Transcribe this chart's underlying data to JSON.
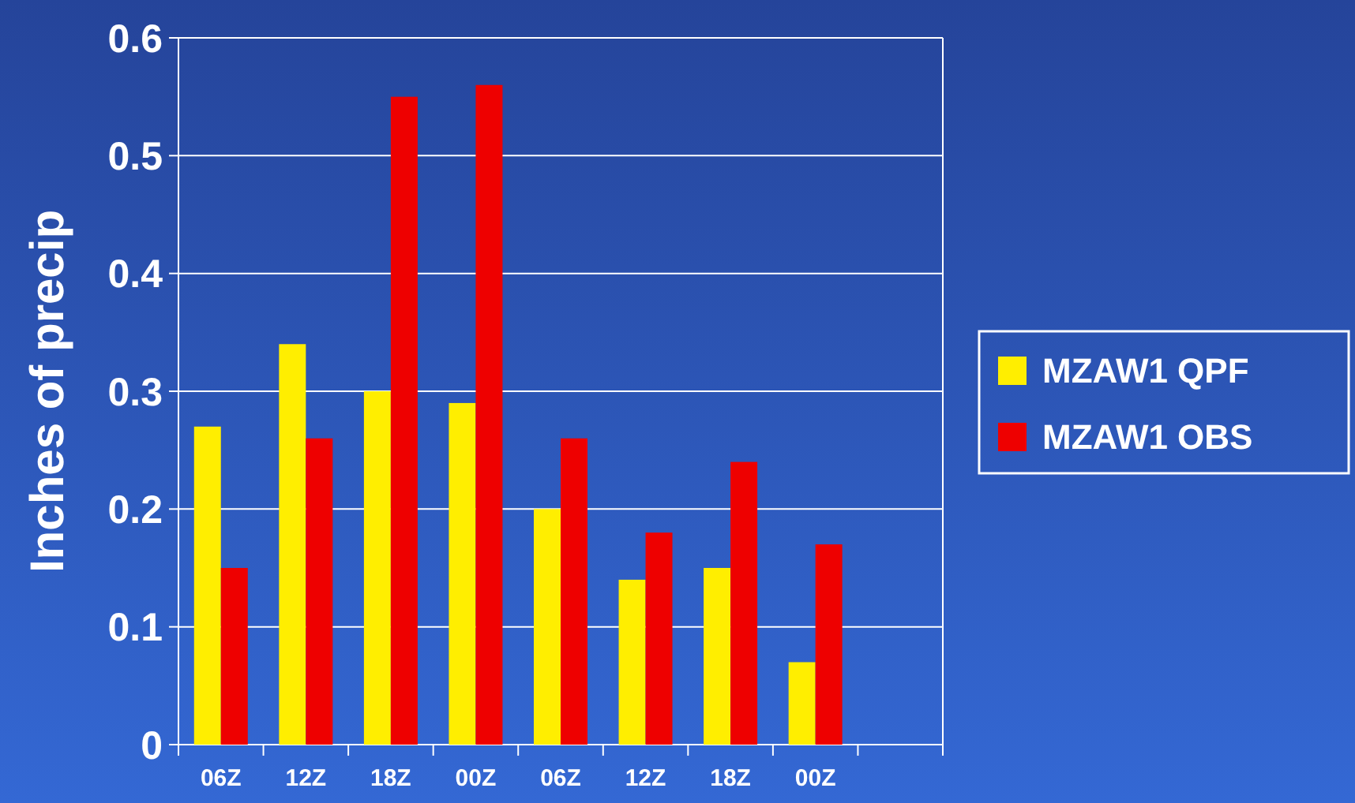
{
  "chart_data": {
    "type": "bar",
    "ylabel": "Inches of precip",
    "categories": [
      "06Z",
      "12Z",
      "18Z",
      "00Z",
      "06Z",
      "12Z",
      "18Z",
      "00Z",
      null
    ],
    "series": [
      {
        "name": "MZAW1 QPF",
        "color": "#ffee00",
        "values": [
          0.27,
          0.34,
          0.3,
          0.29,
          0.2,
          0.14,
          0.15,
          0.07,
          null
        ]
      },
      {
        "name": "MZAW1 OBS",
        "color": "#ee0000",
        "values": [
          0.15,
          0.26,
          0.55,
          0.56,
          0.26,
          0.18,
          0.24,
          0.17,
          null
        ]
      }
    ],
    "ylim": [
      0,
      0.6
    ],
    "yticks": [
      0,
      0.1,
      0.2,
      0.3,
      0.4,
      0.5,
      0.6
    ],
    "grid": "y",
    "legend": "right"
  }
}
